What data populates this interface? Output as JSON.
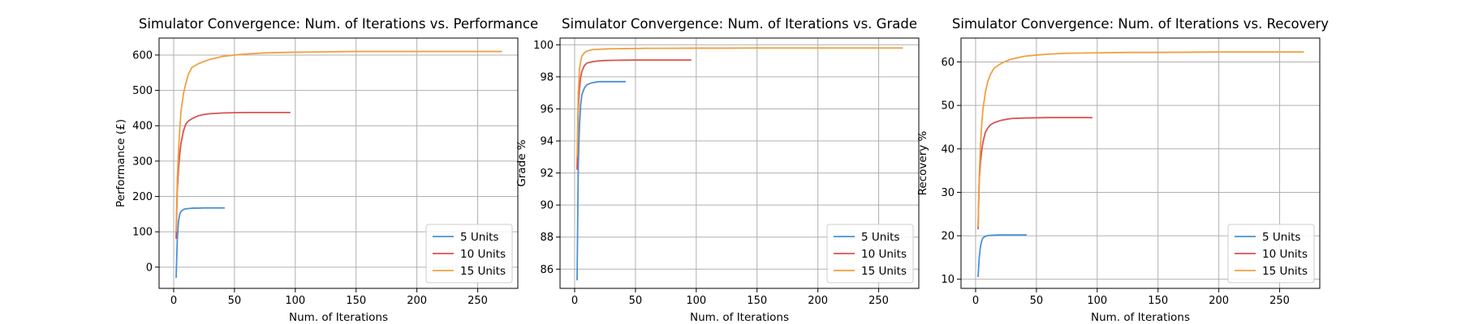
{
  "chart_data": [
    {
      "type": "line",
      "title": "Simulator Convergence: Num. of Iterations vs. Performance",
      "xlabel": "Num. of Iterations",
      "ylabel": "Performance (£)",
      "xlim": [
        -12,
        283
      ],
      "ylim": [
        -60,
        648
      ],
      "xticks": [
        "0",
        "50",
        "100",
        "150",
        "200",
        "250"
      ],
      "yticks": [
        "0",
        "100",
        "200",
        "300",
        "400",
        "500",
        "600"
      ],
      "grid": true,
      "legend": "bottom-right",
      "series": [
        {
          "name": "5 Units",
          "color": "#4a90d9",
          "x": [
            2,
            3,
            4,
            5,
            6,
            8,
            10,
            13,
            16,
            20,
            25,
            30,
            35,
            40,
            42
          ],
          "y": [
            -30,
            80,
            130,
            150,
            158,
            163,
            165,
            166,
            167,
            167,
            167.5,
            167.5,
            167.5,
            167.5,
            167.5
          ]
        },
        {
          "name": "10 Units",
          "color": "#d9534f",
          "x": [
            2,
            3,
            4,
            5,
            6,
            8,
            10,
            12,
            15,
            20,
            25,
            30,
            40,
            50,
            60,
            70,
            80,
            90,
            96
          ],
          "y": [
            80,
            220,
            280,
            320,
            350,
            385,
            405,
            413,
            420,
            428,
            432,
            434,
            436,
            437,
            437.5,
            437.5,
            437.5,
            437.5,
            437.5
          ]
        },
        {
          "name": "15 Units",
          "color": "#f0a040",
          "x": [
            2,
            3,
            4,
            5,
            6,
            8,
            10,
            12,
            15,
            20,
            25,
            30,
            40,
            50,
            60,
            75,
            100,
            125,
            150,
            200,
            250,
            270
          ],
          "y": [
            100,
            250,
            330,
            390,
            440,
            490,
            520,
            545,
            565,
            575,
            582,
            588,
            596,
            600,
            603,
            606,
            608,
            609,
            610,
            610,
            610,
            610
          ]
        }
      ]
    },
    {
      "type": "line",
      "title": "Simulator Convergence: Num. of Iterations vs. Grade",
      "xlabel": "Num. of Iterations",
      "ylabel": "Grade %",
      "xlim": [
        -12,
        283
      ],
      "ylim": [
        84.8,
        100.42
      ],
      "xticks": [
        "0",
        "50",
        "100",
        "150",
        "200",
        "250"
      ],
      "yticks": [
        "86",
        "88",
        "90",
        "92",
        "94",
        "96",
        "98",
        "100"
      ],
      "grid": true,
      "legend": "bottom-right",
      "series": [
        {
          "name": "5 Units",
          "color": "#4a90d9",
          "x": [
            2,
            3,
            4,
            5,
            6,
            8,
            10,
            13,
            16,
            20,
            25,
            30,
            35,
            40,
            42
          ],
          "y": [
            85.3,
            92.5,
            95,
            96.3,
            96.9,
            97.3,
            97.5,
            97.6,
            97.65,
            97.7,
            97.7,
            97.7,
            97.7,
            97.7,
            97.7
          ]
        },
        {
          "name": "10 Units",
          "color": "#d9534f",
          "x": [
            2,
            3,
            4,
            5,
            6,
            8,
            10,
            12,
            15,
            20,
            25,
            30,
            40,
            50,
            60,
            70,
            80,
            90,
            96
          ],
          "y": [
            92.2,
            96,
            97.3,
            98,
            98.35,
            98.7,
            98.85,
            98.9,
            98.95,
            99,
            99.02,
            99.03,
            99.04,
            99.05,
            99.05,
            99.05,
            99.05,
            99.05,
            99.05
          ]
        },
        {
          "name": "15 Units",
          "color": "#f0a040",
          "x": [
            2,
            3,
            4,
            5,
            6,
            8,
            10,
            12,
            15,
            20,
            25,
            30,
            40,
            50,
            60,
            75,
            100,
            125,
            150,
            200,
            250,
            270
          ],
          "y": [
            93,
            97,
            98.5,
            99,
            99.3,
            99.5,
            99.6,
            99.65,
            99.7,
            99.72,
            99.74,
            99.75,
            99.76,
            99.77,
            99.78,
            99.78,
            99.79,
            99.79,
            99.8,
            99.8,
            99.8,
            99.8
          ]
        }
      ]
    },
    {
      "type": "line",
      "title": "Simulator Convergence: Num. of Iterations vs. Recovery",
      "xlabel": "Num. of Iterations",
      "ylabel": "Recovery %",
      "xlim": [
        -12,
        283
      ],
      "ylim": [
        7.9,
        65.5
      ],
      "xticks": [
        "0",
        "50",
        "100",
        "150",
        "200",
        "250"
      ],
      "yticks": [
        "10",
        "20",
        "30",
        "40",
        "50",
        "60"
      ],
      "grid": true,
      "legend": "bottom-right",
      "series": [
        {
          "name": "5 Units",
          "color": "#4a90d9",
          "x": [
            2,
            3,
            4,
            5,
            6,
            8,
            10,
            13,
            16,
            20,
            25,
            30,
            35,
            40,
            42
          ],
          "y": [
            10.5,
            15,
            17.5,
            18.8,
            19.5,
            19.9,
            20.05,
            20.1,
            20.15,
            20.2,
            20.2,
            20.2,
            20.2,
            20.2,
            20.2
          ]
        },
        {
          "name": "10 Units",
          "color": "#d9534f",
          "x": [
            2,
            3,
            4,
            5,
            6,
            8,
            10,
            12,
            15,
            20,
            25,
            30,
            40,
            50,
            60,
            70,
            80,
            90,
            96
          ],
          "y": [
            21.5,
            33,
            37,
            39.5,
            41.5,
            43.8,
            44.8,
            45.5,
            46,
            46.5,
            46.8,
            47,
            47.1,
            47.15,
            47.2,
            47.2,
            47.2,
            47.2,
            47.2
          ]
        },
        {
          "name": "15 Units",
          "color": "#f0a040",
          "x": [
            2,
            3,
            4,
            5,
            6,
            8,
            10,
            12,
            15,
            20,
            25,
            30,
            40,
            50,
            60,
            75,
            100,
            125,
            150,
            200,
            250,
            270
          ],
          "y": [
            22,
            34,
            41,
            45.5,
            49,
            53,
            55.5,
            57,
            58.5,
            59.5,
            60.2,
            60.7,
            61.3,
            61.6,
            61.8,
            62,
            62.1,
            62.2,
            62.2,
            62.3,
            62.3,
            62.3
          ]
        }
      ]
    }
  ]
}
